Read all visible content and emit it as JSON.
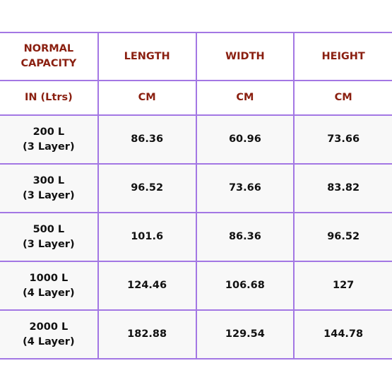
{
  "table": {
    "header": [
      [
        "NORMAL",
        "CAPACITY"
      ],
      [
        "LENGTH"
      ],
      [
        "WIDTH"
      ],
      [
        "HEIGHT"
      ]
    ],
    "units": [
      [
        "IN (Ltrs)"
      ],
      [
        "CM"
      ],
      [
        "CM"
      ],
      [
        "CM"
      ]
    ],
    "rows": [
      [
        [
          "200 L",
          "(3 Layer)"
        ],
        [
          "86.36"
        ],
        [
          "60.96"
        ],
        [
          "73.66"
        ]
      ],
      [
        [
          "300 L",
          "(3 Layer)"
        ],
        [
          "96.52"
        ],
        [
          "73.66"
        ],
        [
          "83.82"
        ]
      ],
      [
        [
          "500 L",
          "(3 Layer)"
        ],
        [
          "101.6"
        ],
        [
          "86.36"
        ],
        [
          "96.52"
        ]
      ],
      [
        [
          "1000 L",
          "(4 Layer)"
        ],
        [
          "124.46"
        ],
        [
          "106.68"
        ],
        [
          "127"
        ]
      ],
      [
        [
          "2000 L",
          "(4 Layer)"
        ],
        [
          "182.88"
        ],
        [
          "129.54"
        ],
        [
          "144.78"
        ]
      ]
    ]
  }
}
